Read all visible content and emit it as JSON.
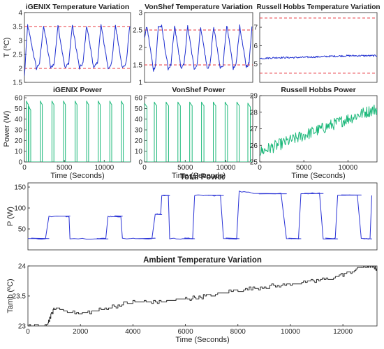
{
  "colors": {
    "temperature": "#1f2fd0",
    "setpoint": "#e8343c",
    "power": "#1cb87a",
    "total_power": "#2a33d6",
    "ambient": "#2b2b2b"
  },
  "chart_data": [
    {
      "id": "igenix-temp",
      "type": "line",
      "title": "iGENIX Temperature Variation",
      "xlabel": "",
      "ylabel": "T (ºC)",
      "xlim": [
        0,
        13300
      ],
      "ylim": [
        1.5,
        4
      ],
      "yticks": [
        "1.5",
        "2",
        "2.5",
        "3",
        "3.5",
        "4"
      ],
      "xticks": [],
      "setpoints": [
        2,
        3.5
      ],
      "series": [
        {
          "x": [
            0,
            400,
            1500,
            1900,
            2400,
            3300,
            3750,
            4200,
            5100,
            5550,
            6000,
            6900,
            7350,
            7800,
            8700,
            9150,
            9600,
            10500,
            10950,
            11400,
            12300,
            12750,
            13200
          ],
          "y": [
            1.7,
            3.55,
            2.0,
            2.2,
            3.55,
            2.0,
            2.2,
            3.55,
            2.0,
            2.2,
            3.55,
            2.0,
            2.2,
            3.55,
            2.0,
            2.2,
            3.55,
            2.0,
            2.2,
            3.55,
            2.0,
            2.2,
            3.5
          ]
        }
      ]
    },
    {
      "id": "vonshef-temp",
      "type": "line",
      "title": "VonShef Temperature Variation",
      "xlabel": "",
      "ylabel": "",
      "xlim": [
        0,
        13300
      ],
      "ylim": [
        1,
        3
      ],
      "yticks": [
        "1",
        "1.5",
        "2",
        "2.5",
        "3"
      ],
      "xticks": [],
      "setpoints": [
        1.5,
        2.5
      ],
      "series": [
        {
          "x": [
            0,
            300,
            1100,
            1350,
            1700,
            2100,
            2900,
            3250,
            3700,
            4500,
            4850,
            5300,
            6100,
            6450,
            6900,
            7700,
            8050,
            8500,
            9300,
            9650,
            10100,
            10900,
            11250,
            11700,
            12500,
            12850,
            13200
          ],
          "y": [
            2.3,
            2.6,
            1.35,
            1.5,
            2.6,
            2.6,
            1.4,
            1.5,
            2.6,
            1.4,
            1.5,
            2.6,
            1.4,
            1.5,
            2.6,
            1.4,
            1.5,
            2.6,
            1.4,
            1.5,
            2.65,
            1.4,
            1.5,
            2.6,
            1.45,
            1.55,
            2.6
          ]
        }
      ]
    },
    {
      "id": "russell-temp",
      "type": "line",
      "title": "Russell Hobbs Temperature Variation",
      "xlabel": "",
      "ylabel": "",
      "xlim": [
        0,
        13300
      ],
      "ylim": [
        4,
        7.8
      ],
      "yticks": [
        "5",
        "6",
        "7"
      ],
      "xticks": [],
      "setpoints": [
        4.5,
        7.5
      ],
      "series": [
        {
          "x": [
            0,
            2000,
            4000,
            6000,
            8000,
            10000,
            12000,
            13300
          ],
          "y": [
            5.3,
            5.35,
            5.35,
            5.38,
            5.42,
            5.45,
            5.45,
            5.45
          ]
        }
      ]
    },
    {
      "id": "igenix-power",
      "type": "line",
      "title": "iGENIX Power",
      "xlabel": "Time (Seconds)",
      "ylabel": "Power (W)",
      "xlim": [
        0,
        13300
      ],
      "ylim": [
        0,
        62
      ],
      "yticks": [
        "0",
        "10",
        "20",
        "30",
        "40",
        "50",
        "60"
      ],
      "xticks": [
        {
          "v": 0,
          "label": "0"
        },
        {
          "v": 5000,
          "label": "5000"
        },
        {
          "v": 10000,
          "label": "10000"
        }
      ],
      "series": [
        {
          "x": [
            0,
            250,
            550,
            2000,
            3450,
            4900,
            6350,
            7800,
            9250,
            10700,
            12150
          ],
          "y": [
            0,
            57,
            52,
            57,
            57,
            57,
            57,
            57,
            57,
            57,
            57
          ]
        }
      ]
    },
    {
      "id": "vonshef-power",
      "type": "line",
      "title": "VonShef Power",
      "xlabel": "Time (Seconds)",
      "ylabel": "",
      "xlim": [
        0,
        13300
      ],
      "ylim": [
        0,
        62
      ],
      "yticks": [
        "0",
        "10",
        "20",
        "30",
        "40",
        "50",
        "60"
      ],
      "xticks": [
        {
          "v": 0,
          "label": "0"
        },
        {
          "v": 5000,
          "label": "5000"
        },
        {
          "v": 10000,
          "label": "10000"
        }
      ],
      "series": [
        {
          "x": [
            0,
            1200,
            2650,
            4100,
            5550,
            7000,
            8450,
            9900,
            11350,
            12700
          ],
          "y": [
            55,
            56,
            56,
            56,
            56,
            56,
            56,
            56,
            56,
            55
          ]
        }
      ]
    },
    {
      "id": "russell-power",
      "type": "line",
      "title": "Russell Hobbs Power",
      "xlabel": "Time (Seconds)",
      "ylabel": "",
      "xlim": [
        0,
        13300
      ],
      "ylim": [
        25,
        29
      ],
      "yticks": [
        "25",
        "26",
        "27",
        "28",
        "29"
      ],
      "xticks": [
        {
          "v": 0,
          "label": "0"
        },
        {
          "v": 5000,
          "label": "5000"
        },
        {
          "v": 10000,
          "label": "10000"
        }
      ],
      "series": [
        {
          "x": [
            0,
            2000,
            4000,
            6000,
            8000,
            10000,
            12000,
            13300
          ],
          "y": [
            25.6,
            26.0,
            26.4,
            26.8,
            27.2,
            27.6,
            28.0,
            28.2
          ]
        }
      ]
    },
    {
      "id": "total-power",
      "type": "line",
      "title": "Total Power",
      "xlabel": "",
      "ylabel": "P (W)",
      "xlim": [
        0,
        13300
      ],
      "ylim": [
        0,
        160
      ],
      "yticks": [
        "50",
        "100",
        "150"
      ],
      "xticks": [],
      "series": [
        {
          "x": [
            0,
            800,
            1400,
            1600,
            2550,
            3050,
            3250,
            3600,
            4100,
            4850,
            5100,
            5400,
            5900,
            6350,
            6750,
            7450,
            8050,
            8600,
            9850,
            10400,
            11250,
            11800,
            12700,
            13100
          ],
          "y": [
            27,
            80,
            80,
            27,
            27,
            80,
            80,
            27,
            27,
            85,
            130,
            27,
            27,
            130,
            130,
            27,
            140,
            135,
            27,
            135,
            27,
            130,
            27,
            130
          ]
        }
      ]
    },
    {
      "id": "ambient-temp",
      "type": "line",
      "title": "Ambient Temperature Variation",
      "xlabel": "Time (Seconds)",
      "ylabel": "Tamb (ºC)",
      "xlim": [
        0,
        13300
      ],
      "ylim": [
        23,
        24
      ],
      "yticks": [
        "23",
        "23.5",
        "24"
      ],
      "xticks": [
        {
          "v": 0,
          "label": "0"
        },
        {
          "v": 2000,
          "label": "2000"
        },
        {
          "v": 4000,
          "label": "4000"
        },
        {
          "v": 6000,
          "label": "6000"
        },
        {
          "v": 8000,
          "label": "8000"
        },
        {
          "v": 10000,
          "label": "10000"
        },
        {
          "v": 12000,
          "label": "12000"
        }
      ],
      "series": [
        {
          "x": [
            0,
            700,
            1000,
            2000,
            3000,
            4000,
            5000,
            6000,
            6800,
            8000,
            9000,
            10000,
            11000,
            12000,
            12700,
            13100,
            13300
          ],
          "y": [
            23.0,
            23.0,
            23.3,
            23.2,
            23.3,
            23.4,
            23.4,
            23.45,
            23.5,
            23.6,
            23.65,
            23.7,
            23.75,
            23.85,
            23.98,
            24.0,
            23.95
          ]
        }
      ]
    }
  ]
}
